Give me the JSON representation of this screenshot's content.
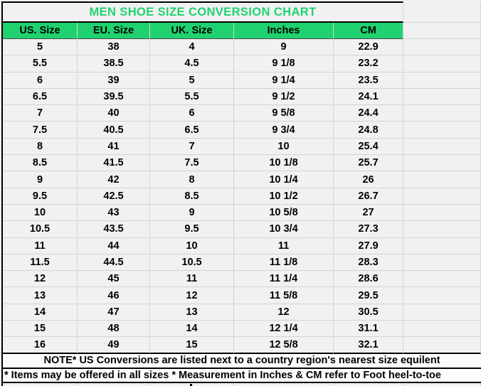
{
  "title": "MEN SHOE SIZE CONVERSION CHART",
  "colors": {
    "accent_green": "#1fd26f",
    "cell_background": "#f1f1f1",
    "note_background": "#fcfcfc",
    "gridline": "#d4d4d4",
    "border": "#000000",
    "header_text": "#000000"
  },
  "table": {
    "headers": [
      "US. Size",
      "EU. Size",
      "UK. Size",
      "Inches",
      "CM"
    ],
    "rows": [
      {
        "us": "5",
        "eu": "38",
        "uk": "4",
        "inches": "9",
        "cm": "22.9"
      },
      {
        "us": "5.5",
        "eu": "38.5",
        "uk": "4.5",
        "inches": "9 1/8",
        "cm": "23.2"
      },
      {
        "us": "6",
        "eu": "39",
        "uk": "5",
        "inches": "9 1/4",
        "cm": "23.5"
      },
      {
        "us": "6.5",
        "eu": "39.5",
        "uk": "5.5",
        "inches": "9 1/2",
        "cm": "24.1"
      },
      {
        "us": "7",
        "eu": "40",
        "uk": "6",
        "inches": "9 5/8",
        "cm": "24.4"
      },
      {
        "us": "7.5",
        "eu": "40.5",
        "uk": "6.5",
        "inches": "9 3/4",
        "cm": "24.8"
      },
      {
        "us": "8",
        "eu": "41",
        "uk": "7",
        "inches": "10",
        "cm": "25.4"
      },
      {
        "us": "8.5",
        "eu": "41.5",
        "uk": "7.5",
        "inches": "10 1/8",
        "cm": "25.7"
      },
      {
        "us": "9",
        "eu": "42",
        "uk": "8",
        "inches": "10 1/4",
        "cm": "26"
      },
      {
        "us": "9.5",
        "eu": "42.5",
        "uk": "8.5",
        "inches": "10 1/2",
        "cm": "26.7"
      },
      {
        "us": "10",
        "eu": "43",
        "uk": "9",
        "inches": "10 5/8",
        "cm": "27"
      },
      {
        "us": "10.5",
        "eu": "43.5",
        "uk": "9.5",
        "inches": "10 3/4",
        "cm": "27.3"
      },
      {
        "us": "11",
        "eu": "44",
        "uk": "10",
        "inches": "11",
        "cm": "27.9"
      },
      {
        "us": "11.5",
        "eu": "44.5",
        "uk": "10.5",
        "inches": "11 1/8",
        "cm": "28.3"
      },
      {
        "us": "12",
        "eu": "45",
        "uk": "11",
        "inches": "11 1/4",
        "cm": "28.6"
      },
      {
        "us": "13",
        "eu": "46",
        "uk": "12",
        "inches": "11 5/8",
        "cm": "29.5"
      },
      {
        "us": "14",
        "eu": "47",
        "uk": "13",
        "inches": "12",
        "cm": "30.5"
      },
      {
        "us": "15",
        "eu": "48",
        "uk": "14",
        "inches": "12 1/4",
        "cm": "31.1"
      },
      {
        "us": "16",
        "eu": "49",
        "uk": "15",
        "inches": "12 5/8",
        "cm": "32.1"
      }
    ]
  },
  "notes": {
    "note1": "NOTE* US Conversions are listed next to a country region's nearest size equilent",
    "note2": "* Items may be offered in all sizes * Measurement in Inches & CM refer to Foot heel-to-toe"
  }
}
